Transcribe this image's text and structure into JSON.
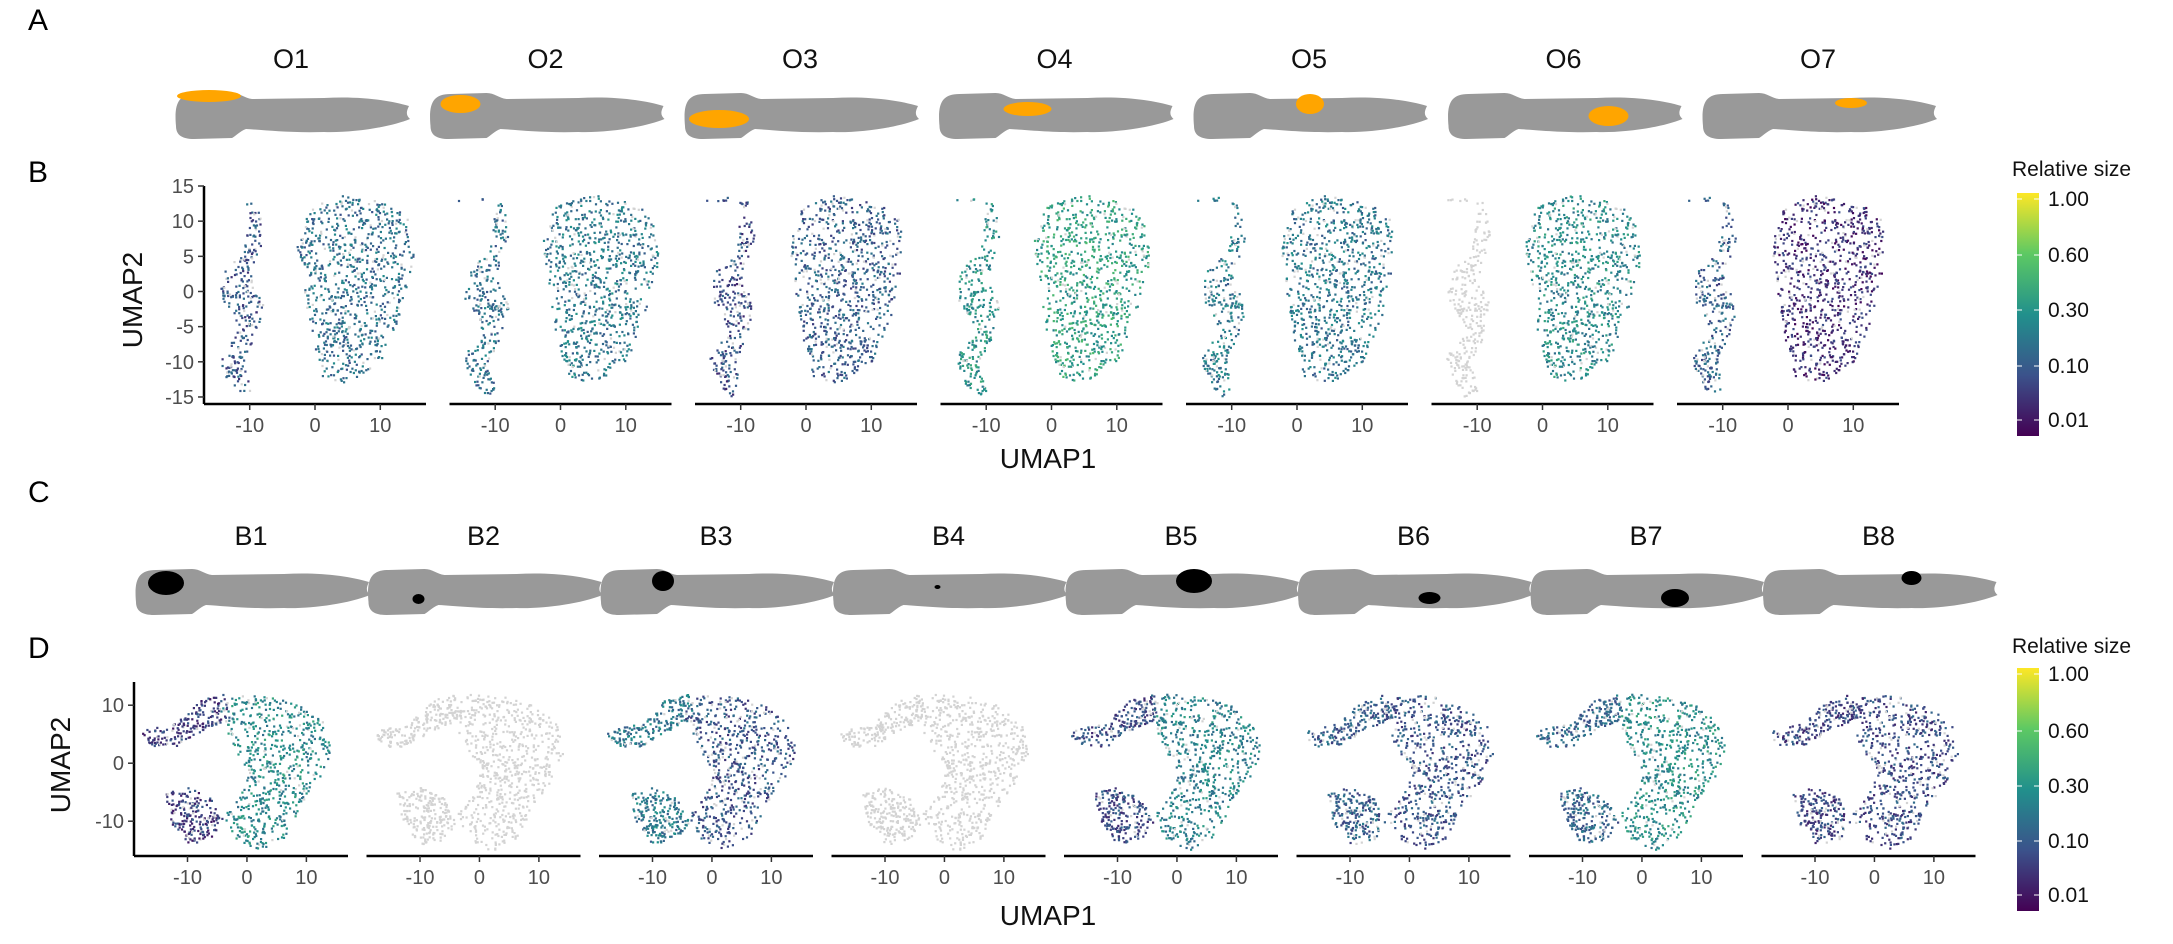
{
  "panel_letters": [
    "A",
    "B",
    "C",
    "D"
  ],
  "legend": {
    "title": "Relative size",
    "ticks": [
      "1.00",
      "0.60",
      "0.30",
      "0.10",
      "0.01"
    ]
  },
  "colors": {
    "body_silhouette": "#999999",
    "organ_highlight": "#ffa500",
    "bone_highlight": "#000000",
    "low_point": "#d3d3d3",
    "viridis": [
      "#440154",
      "#3b528b",
      "#21908c",
      "#5dc963",
      "#fde725"
    ]
  },
  "chart_data": [
    {
      "type": "scatter",
      "panel": "A/B",
      "subtype": "UMAP facets",
      "xlabel": "UMAP1",
      "ylabel": "UMAP2",
      "x_ticks": [
        "-10",
        "0",
        "10"
      ],
      "y_ticks": [
        "15",
        "10",
        "5",
        "0",
        "-5",
        "-10",
        "-15"
      ],
      "xlim": [
        -17,
        17
      ],
      "ylim": [
        -16,
        15
      ],
      "facets": [
        {
          "label": "O1",
          "highlight_region": "head-top",
          "levels": {
            "left": 0.08,
            "right": 0.15
          }
        },
        {
          "label": "O2",
          "highlight_region": "head",
          "levels": {
            "left": 0.15,
            "right": 0.18
          }
        },
        {
          "label": "O3",
          "highlight_region": "head-bottom",
          "levels": {
            "left": 0.06,
            "right": 0.1
          }
        },
        {
          "label": "O4",
          "highlight_region": "trunk-front",
          "levels": {
            "left": 0.28,
            "right": 0.35
          }
        },
        {
          "label": "O5",
          "highlight_region": "trunk-mid",
          "levels": {
            "left": 0.18,
            "right": 0.17
          }
        },
        {
          "label": "O6",
          "highlight_region": "trunk-bottom",
          "levels": {
            "left": 0.0,
            "right": 0.25
          }
        },
        {
          "label": "O7",
          "highlight_region": "trunk-top",
          "levels": {
            "left": 0.1,
            "right": 0.02
          }
        }
      ]
    },
    {
      "type": "scatter",
      "panel": "C/D",
      "subtype": "UMAP facets",
      "xlabel": "UMAP1",
      "ylabel": "UMAP2",
      "x_ticks": [
        "-10",
        "0",
        "10"
      ],
      "y_ticks": [
        "10",
        "0",
        "-10"
      ],
      "xlim": [
        -19,
        17
      ],
      "ylim": [
        -16,
        14
      ],
      "facets": [
        {
          "label": "B1",
          "highlight_region": "head-large",
          "levels": {
            "left": 0.04,
            "right": 0.25
          }
        },
        {
          "label": "B2",
          "highlight_region": "jaw-dot",
          "levels": {
            "left": 0.0,
            "right": 0.0
          }
        },
        {
          "label": "B3",
          "highlight_region": "head-upper",
          "levels": {
            "left": 0.18,
            "right": 0.08
          }
        },
        {
          "label": "B4",
          "highlight_region": "tiny-dot",
          "levels": {
            "left": 0.0,
            "right": 0.0
          }
        },
        {
          "label": "B5",
          "highlight_region": "trunk-mid-large",
          "levels": {
            "left": 0.06,
            "right": 0.22
          }
        },
        {
          "label": "B6",
          "highlight_region": "trunk-lower",
          "levels": {
            "left": 0.1,
            "right": 0.08
          }
        },
        {
          "label": "B7",
          "highlight_region": "trunk-bottom",
          "levels": {
            "left": 0.12,
            "right": 0.27
          }
        },
        {
          "label": "B8",
          "highlight_region": "trunk-top-right",
          "levels": {
            "left": 0.05,
            "right": 0.06
          }
        }
      ]
    }
  ]
}
